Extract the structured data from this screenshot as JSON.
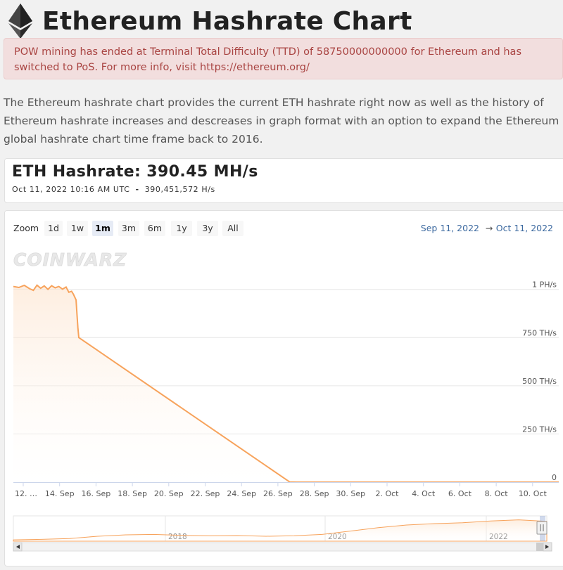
{
  "page": {
    "title": "Ethereum Hashrate Chart",
    "alert": "POW mining has ended at Terminal Total Difficulty (TTD) of 58750000000000 for Ethereum and has switched to PoS. For more info, visit https://ethereum.org/",
    "intro": "The Ethereum hashrate chart provides the current ETH hashrate right now as well as the history of Ethereum hashrate increases and descreases in graph format with an option to expand the Ethereum global hashrate chart time frame back to 2016."
  },
  "hashrate": {
    "title": "ETH Hashrate: 390.45 MH/s",
    "timestamp": "Oct 11, 2022 10:16 AM UTC",
    "separator": "-",
    "value_hs": "390,451,572 H/s"
  },
  "toolbar": {
    "zoom_label": "Zoom",
    "zoom_options": [
      "1d",
      "1w",
      "1m",
      "3m",
      "6m",
      "1y",
      "3y",
      "All"
    ],
    "selected": "1m",
    "range_from": "Sep 11, 2022",
    "range_arrow": "→",
    "range_to": "Oct 11, 2022"
  },
  "watermark": "COINWARZ",
  "colors": {
    "series": "#f7a35c",
    "fill_top": "#fde0c7",
    "accent_blue": "#3d6aa0",
    "selected_bg": "#e6ebf5"
  },
  "chart_data": {
    "type": "area",
    "x_ticks": [
      "12. …",
      "14. Sep",
      "16. Sep",
      "18. Sep",
      "20. Sep",
      "22. Sep",
      "24. Sep",
      "26. Sep",
      "28. Sep",
      "30. Sep",
      "2. Oct",
      "4. Oct",
      "6. Oct",
      "8. Oct",
      "10. Oct"
    ],
    "y_ticks": [
      "0",
      "250 TH/s",
      "500 TH/s",
      "750 TH/s",
      "1 PH/s"
    ],
    "ylim_ths": [
      0,
      1050
    ],
    "y_tick_values_ths": [
      0,
      250,
      500,
      750,
      1000
    ],
    "x_range_days": [
      0,
      30
    ],
    "series": [
      {
        "x_days": [
          0,
          0.3,
          0.6,
          0.9,
          1.1,
          1.3,
          1.5,
          1.7,
          1.9,
          2.1,
          2.3,
          2.5,
          2.7,
          2.9,
          3.05,
          3.2,
          3.3,
          3.45,
          3.5,
          3.55,
          3.6,
          15.2,
          15.6,
          30
        ],
        "y_ths": [
          1015,
          1010,
          1021,
          1003,
          995,
          1022,
          1006,
          1018,
          1000,
          1019,
          1008,
          1015,
          1001,
          1012,
          985,
          990,
          975,
          945,
          870,
          800,
          750,
          0.6,
          0.0004,
          0.00039
        ]
      }
    ],
    "navigator": {
      "year_labels": [
        "2018",
        "2020",
        "2022"
      ],
      "profile": [
        0.06,
        0.08,
        0.12,
        0.22,
        0.28,
        0.3,
        0.26,
        0.24,
        0.25,
        0.22,
        0.24,
        0.3,
        0.45,
        0.6,
        0.72,
        0.78,
        0.82,
        0.9,
        0.95,
        0.88
      ]
    }
  }
}
